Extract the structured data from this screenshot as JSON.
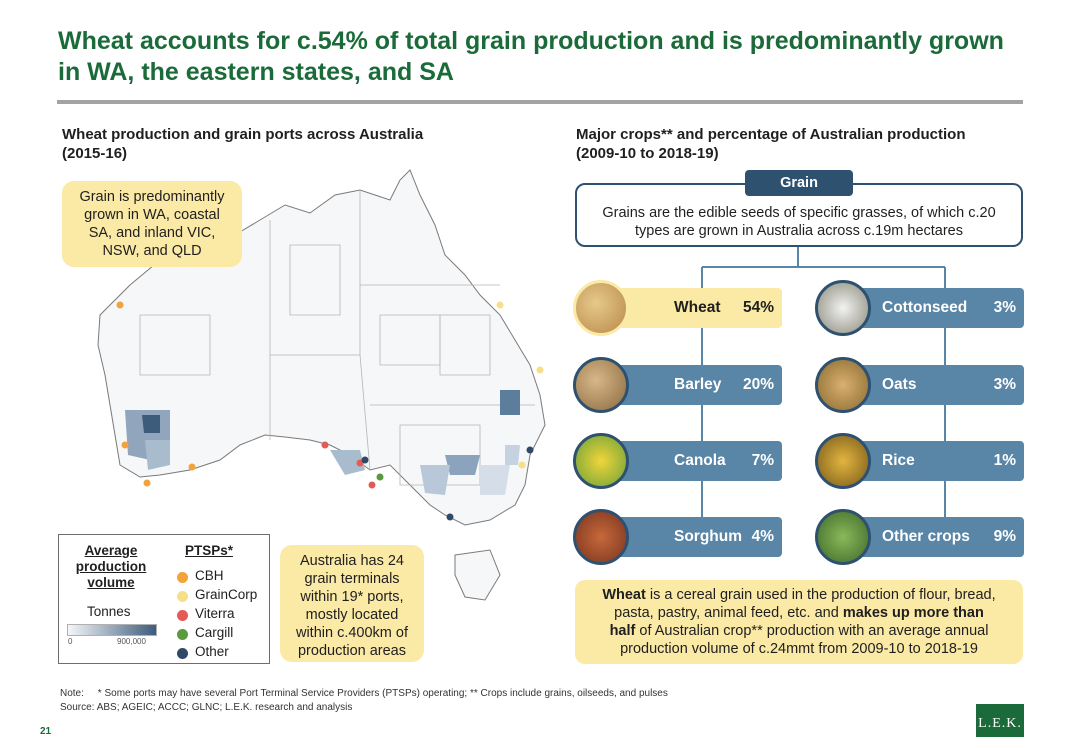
{
  "header": {
    "title_line1": "Wheat accounts for c.54% of total grain production and is predominantly grown",
    "title_line2": "in WA, the eastern states, and SA"
  },
  "left": {
    "title_line1": "Wheat production and grain ports across Australia",
    "title_line2": "(2015-16)",
    "callout_top": [
      "Grain is predominantly",
      "grown in WA, coastal",
      "SA, and inland VIC,",
      "NSW, and QLD"
    ],
    "callout_bottom": [
      "Australia has 24",
      "grain terminals",
      "within 19* ports,",
      "mostly located",
      "within c.400km of",
      "production areas"
    ],
    "legend": {
      "volume_heading": [
        "Average",
        "production",
        "volume"
      ],
      "units": "Tonnes",
      "scale_min": "0",
      "scale_max": "900,000",
      "ptsp_heading": "PTSPs*",
      "items": [
        {
          "label": "CBH",
          "color": "#f2a33a"
        },
        {
          "label": "GrainCorp",
          "color": "#f7df8a"
        },
        {
          "label": "Viterra",
          "color": "#e45a55"
        },
        {
          "label": "Cargill",
          "color": "#5a9a3c"
        },
        {
          "label": "Other",
          "color": "#2f4a66"
        }
      ]
    }
  },
  "right": {
    "title_line1": "Major crops** and percentage of Australian production",
    "title_line2": "(2009-10 to 2018-19)",
    "grain_tab": "Grain",
    "grain_desc_line1": "Grains are the edible seeds of specific grasses, of which c.20",
    "grain_desc_line2": "types are grown in Australia across c.19m hectares",
    "crops_left": [
      {
        "name": "Wheat",
        "pct": "54%",
        "icon": "wheat-icon"
      },
      {
        "name": "Barley",
        "pct": "20%",
        "icon": "barley-icon"
      },
      {
        "name": "Canola",
        "pct": "7%",
        "icon": "canola-icon"
      },
      {
        "name": "Sorghum",
        "pct": "4%",
        "icon": "sorghum-icon"
      }
    ],
    "crops_right": [
      {
        "name": "Cottonseed",
        "pct": "3%",
        "icon": "cottonseed-icon"
      },
      {
        "name": "Oats",
        "pct": "3%",
        "icon": "oats-icon"
      },
      {
        "name": "Rice",
        "pct": "1%",
        "icon": "rice-icon"
      },
      {
        "name": "Other crops",
        "pct": "9%",
        "icon": "other-crops-icon"
      }
    ],
    "info": {
      "l1a": "Wheat",
      "l1b": " is a cereal grain used in the production of flour, bread,",
      "l2a": "pasta, pastry, animal feed, etc. and ",
      "l2b": "makes up more than",
      "l3a": "half",
      "l3b": " of Australian crop** production with an average annual",
      "l4": "production volume of c.24mmt from 2009-10 to 2018-19"
    }
  },
  "footer": {
    "note": "Note:     * Some ports may have several Port Terminal Service Providers (PTSPs) operating; ** Crops include grains, oilseeds, and pulses",
    "source": "Source: ABS; AGEIC; ACCC; GLNC; L.E.K. research and analysis",
    "page": "21",
    "logo": "L.E.K."
  }
}
